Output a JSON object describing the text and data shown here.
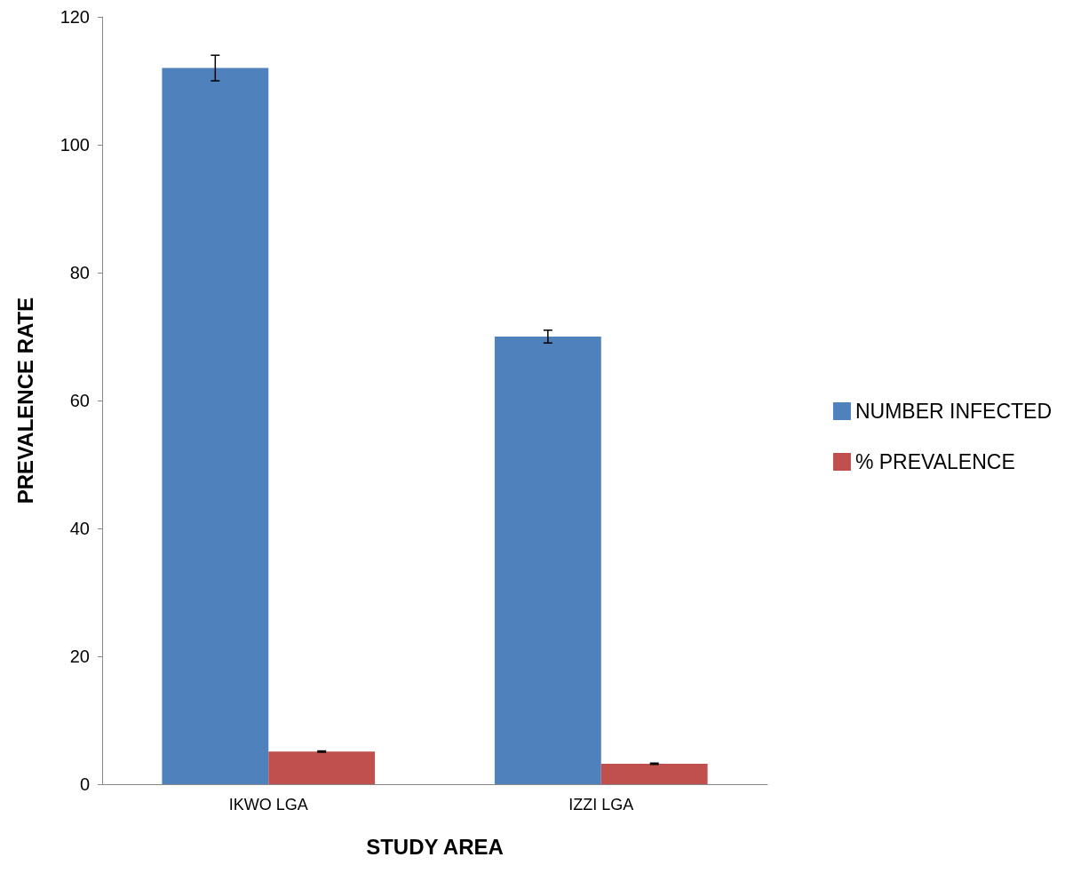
{
  "chart_data": {
    "type": "bar",
    "xlabel": "STUDY AREA",
    "ylabel": "PREVALENCE RATE",
    "categories": [
      "IKWO LGA",
      "IZZI LGA"
    ],
    "series": [
      {
        "name": "NUMBER INFECTED",
        "color": "#4f81bd",
        "values": [
          112,
          70
        ],
        "errors": [
          2,
          1
        ]
      },
      {
        "name": "% PREVALENCE",
        "color": "#c0504d",
        "values": [
          5.1,
          3.2
        ],
        "errors": [
          0.1,
          0.1
        ]
      }
    ],
    "ylim": [
      0,
      120
    ],
    "yticks": [
      0,
      20,
      40,
      60,
      80,
      100,
      120
    ],
    "grid": false,
    "legend": "right"
  }
}
